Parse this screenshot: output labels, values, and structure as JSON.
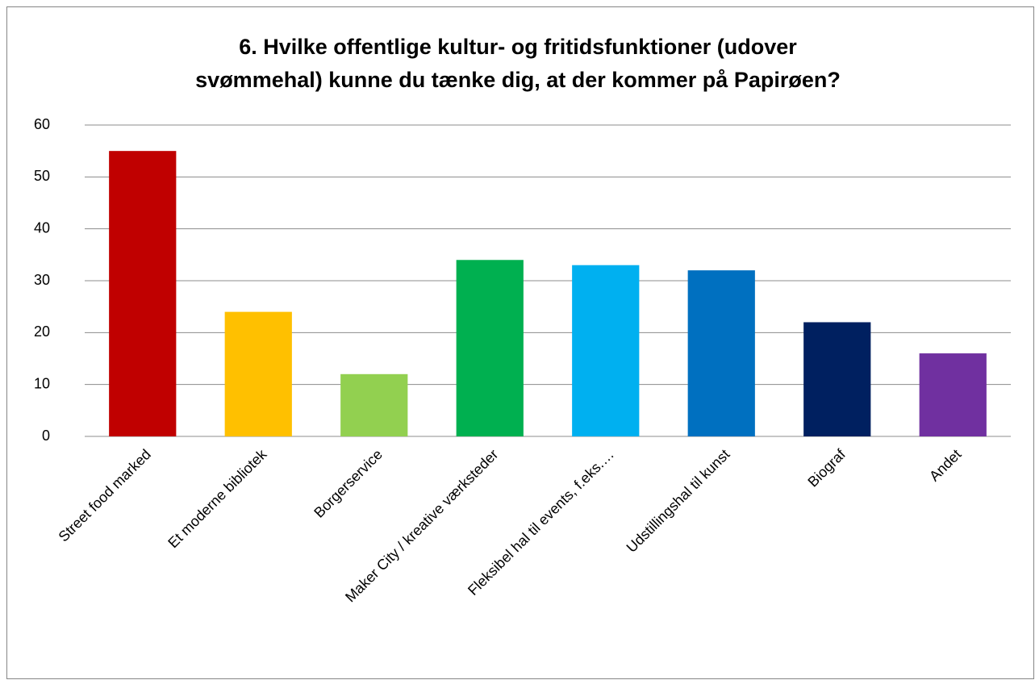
{
  "chart_data": {
    "type": "bar",
    "title": [
      "6. Hvilke offentlige kultur- og fritidsfunktioner (udover",
      "svømmehal) kunne du tænke dig, at der kommer på Papirøen?"
    ],
    "categories": [
      "Street food marked",
      "Et moderne bibliotek",
      "Borgerservice",
      "Maker City / kreative værksteder",
      "Fleksibel hal til events, f.eks.…",
      "Udstillingshal til kunst",
      "Biograf",
      "Andet"
    ],
    "values": [
      55,
      24,
      12,
      34,
      33,
      32,
      22,
      16
    ],
    "colors": [
      "#c00000",
      "#ffc000",
      "#92d050",
      "#00b050",
      "#00b0f0",
      "#0070c0",
      "#002060",
      "#7030a0"
    ],
    "ylim": [
      0,
      60
    ],
    "yticks": [
      0,
      10,
      20,
      30,
      40,
      50,
      60
    ],
    "grid": true
  }
}
